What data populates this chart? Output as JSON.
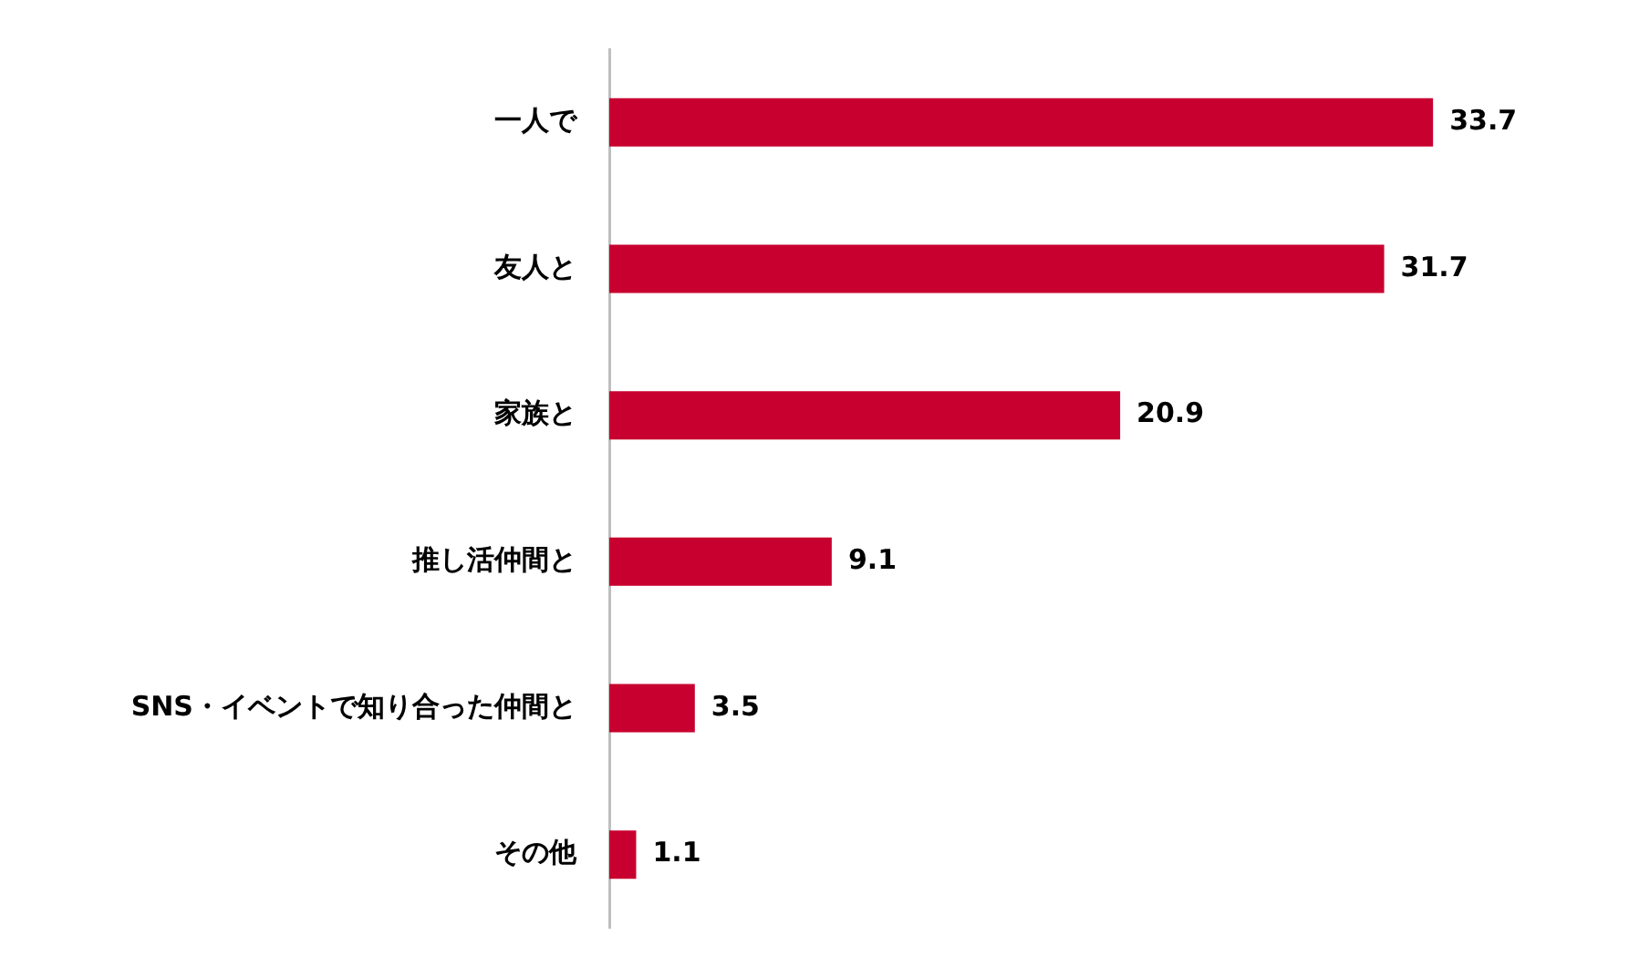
{
  "chart_data": {
    "type": "bar",
    "orientation": "horizontal",
    "categories": [
      "一人で",
      "友人と",
      "家族と",
      "推し活仲間と",
      "SNS・イベントで知り合った仲間と",
      "その他"
    ],
    "values": [
      33.7,
      31.7,
      20.9,
      9.1,
      3.5,
      1.1
    ],
    "color": "#c8002f",
    "data_labels": true
  }
}
